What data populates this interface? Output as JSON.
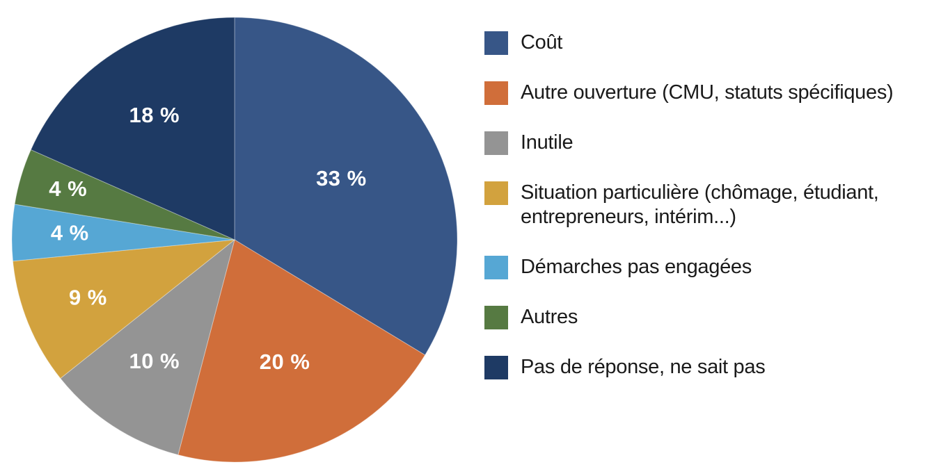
{
  "chart_data": {
    "type": "pie",
    "title": "",
    "legend_position": "right",
    "start_angle_deg": 0,
    "direction": "clockwise",
    "data_labels": "percent",
    "label_text_color": "#ffffff",
    "legend_text_color": "#1a1a1a",
    "background_color": "#ffffff",
    "slices": [
      {
        "label": "Coût",
        "value": 33,
        "display": "33 %",
        "color": "#375687"
      },
      {
        "label": "Autre ouverture (CMU, statuts spécifiques)",
        "value": 20,
        "display": "20 %",
        "color": "#D06E3A"
      },
      {
        "label": "Inutile",
        "value": 10,
        "display": "10 %",
        "color": "#949494"
      },
      {
        "label": "Situation particulière (chômage, étudiant,\nentrepreneurs, intérim...)",
        "value": 9,
        "display": "9 %",
        "color": "#D2A23E"
      },
      {
        "label": "Démarches pas engagées",
        "value": 4,
        "display": "4 %",
        "color": "#56A7D4"
      },
      {
        "label": "Autres",
        "value": 4,
        "display": "4 %",
        "color": "#567A42"
      },
      {
        "label": "Pas de réponse, ne sait pas",
        "value": 18,
        "display": "18 %",
        "color": "#1E3A64"
      }
    ]
  }
}
